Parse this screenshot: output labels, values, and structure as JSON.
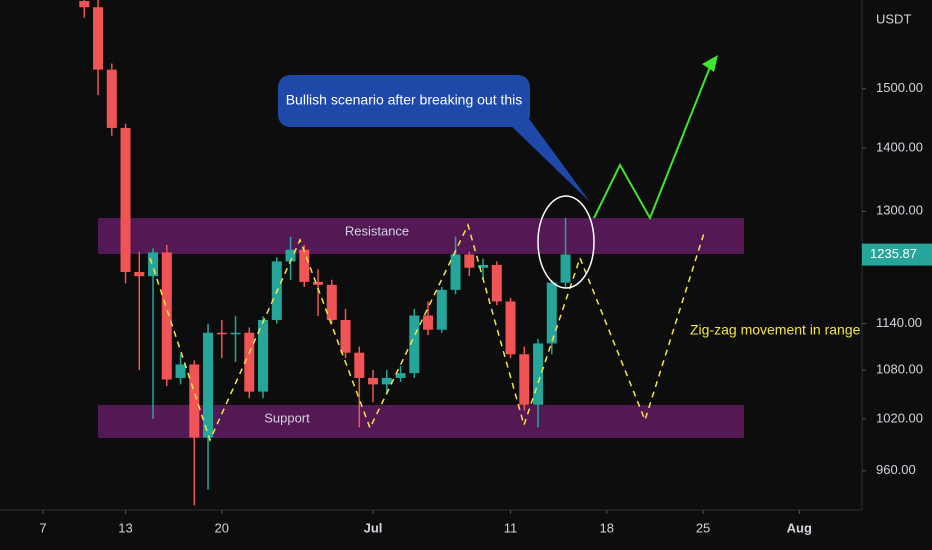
{
  "chart_data": {
    "type": "candlestick",
    "currency": "USDT",
    "x": [
      10,
      11,
      12,
      13,
      14,
      15,
      16,
      17,
      18,
      19,
      20,
      21,
      22,
      23,
      24,
      25,
      26,
      27,
      28,
      29,
      30,
      31,
      32,
      33,
      34,
      35,
      36,
      37,
      38,
      39,
      40,
      41,
      42,
      43,
      44,
      45
    ],
    "open": [
      1662,
      1650,
      1534,
      1433,
      1211,
      1205,
      1239,
      1070,
      1087,
      998,
      1128,
      1126,
      1128,
      1053,
      1145,
      1226,
      1243,
      1197,
      1193,
      1145,
      1102,
      1070,
      1062,
      1070,
      1076,
      1151,
      1132,
      1186,
      1236,
      1217,
      1221,
      1170,
      1100,
      1037,
      1114,
      1196
    ],
    "high": [
      1664,
      1664,
      1545,
      1440,
      1240,
      1245,
      1250,
      1100,
      1092,
      1140,
      1145,
      1150,
      1135,
      1150,
      1232,
      1262,
      1250,
      1215,
      1200,
      1160,
      1110,
      1080,
      1080,
      1085,
      1160,
      1170,
      1190,
      1262,
      1240,
      1230,
      1226,
      1175,
      1110,
      1120,
      1200,
      1290
    ],
    "low": [
      1630,
      1489,
      1420,
      1195,
      1080,
      1020,
      1060,
      1062,
      922,
      939,
      1095,
      1090,
      1045,
      1045,
      1140,
      1200,
      1190,
      1150,
      1140,
      1095,
      1010,
      1040,
      1050,
      1065,
      1070,
      1125,
      1128,
      1180,
      1205,
      1200,
      1165,
      1095,
      1030,
      1010,
      1100,
      1190
    ],
    "close": [
      1650,
      1534,
      1433,
      1211,
      1205,
      1239,
      1068,
      1087,
      998,
      1128,
      1126,
      1128,
      1053,
      1145,
      1226,
      1243,
      1197,
      1193,
      1145,
      1102,
      1070,
      1062,
      1070,
      1076,
      1151,
      1132,
      1186,
      1236,
      1217,
      1221,
      1170,
      1100,
      1037,
      1114,
      1196,
      1236
    ],
    "up_color": "#26a69a",
    "down_color": "#f05454",
    "last_price": 1235.87,
    "log_scale": true,
    "xlim": [
      3.87,
      66.56
    ],
    "xticks": [
      7,
      13,
      20,
      {
        "value": 31,
        "label": "Jul"
      },
      {
        "value": 41,
        "label": "11"
      },
      {
        "value": 48,
        "label": "18"
      },
      {
        "value": 55,
        "label": "25"
      },
      {
        "value": 62,
        "label": "Aug"
      }
    ],
    "ylim": [
      917,
      1664
    ],
    "yticks": [
      {
        "value": 960,
        "label": "960.00"
      },
      {
        "value": 1020,
        "label": "1020.00"
      },
      {
        "value": 1080,
        "label": "1080.00"
      },
      {
        "value": 1140,
        "label": "1140.00"
      },
      {
        "value": 1300,
        "label": "1300.00"
      },
      {
        "value": 1400,
        "label": "1400.00"
      },
      {
        "value": 1500,
        "label": "1500.00"
      }
    ],
    "annotations": {
      "resistance": "Resistance",
      "support": "Support",
      "callout": "Bullish scenario after breaking out this",
      "zigzag": "Zig-zag movement in range"
    }
  }
}
